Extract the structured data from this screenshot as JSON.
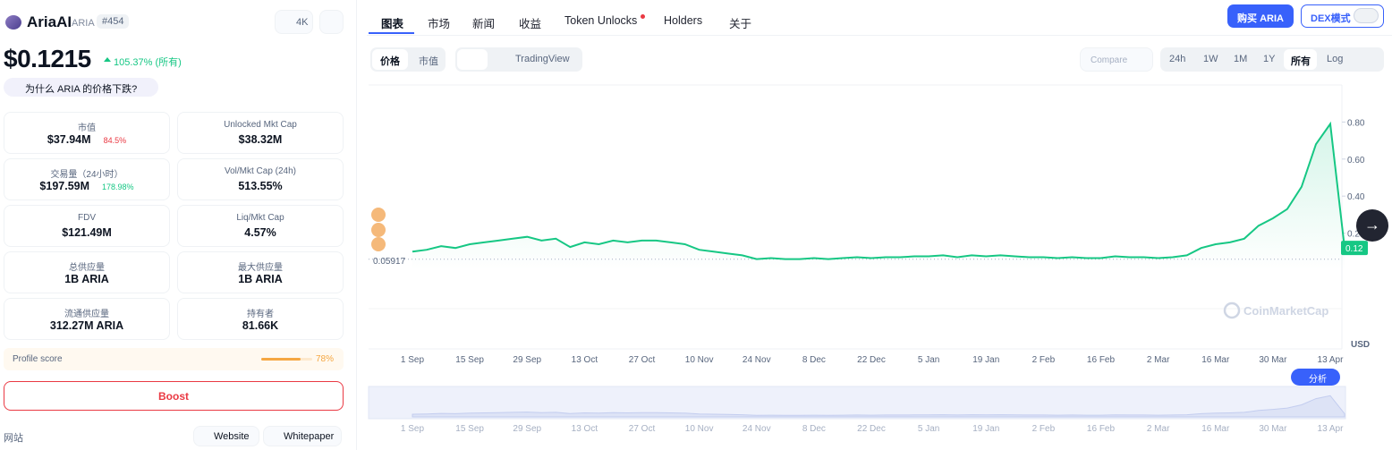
{
  "header": {
    "name": "AriaAI",
    "symbol": "ARIA",
    "rank": "#454",
    "watchlist": "4K"
  },
  "price": "$0.1215",
  "price_change": "105.37% (所有)",
  "why_prompt": "为什么 ARIA 的价格下跌?",
  "stats": [
    {
      "label": "市值",
      "value": "$37.94M",
      "change": "84.5%",
      "change_direction": "down"
    },
    {
      "label": "Unlocked Mkt Cap",
      "value": "$38.32M"
    },
    {
      "label": "交易量（24小时）",
      "value": "$197.59M",
      "change": "178.98%",
      "change_direction": "up"
    },
    {
      "label": "Vol/Mkt Cap (24h)",
      "value": "513.55%"
    },
    {
      "label": "FDV",
      "value": "$121.49M"
    },
    {
      "label": "Liq/Mkt Cap",
      "value": "4.57%"
    },
    {
      "label": "总供应量",
      "value": "1B ARIA"
    },
    {
      "label": "最大供应量",
      "value": "1B ARIA"
    },
    {
      "label": "流通供应量",
      "value": "312.27M ARIA"
    },
    {
      "label": "持有者",
      "value": "81.66K"
    }
  ],
  "profile_score": {
    "label": "Profile score",
    "value": 78,
    "value_label": "78%"
  },
  "boost": "Boost",
  "website_label": "网站",
  "links": [
    "Website",
    "Whitepaper"
  ],
  "tabs": [
    "图表",
    "市场",
    "新闻",
    "收益",
    "Token Unlocks",
    "Holders",
    "关于"
  ],
  "buy_button": "购买 ARIA",
  "dex_mode": "DEX模式",
  "chart_toggles": [
    "价格",
    "市值"
  ],
  "chart_style": "TradingView",
  "compare": "Compare",
  "ranges": [
    "24h",
    "1W",
    "1M",
    "1Y",
    "所有",
    "Log"
  ],
  "active_range": "所有",
  "analyze": "分析",
  "currency": "USD",
  "watermark": "CoinMarketCap",
  "chart_data": {
    "type": "line",
    "color": "#16c784",
    "categories": [
      "1 Sep",
      null,
      null,
      null,
      "15 Sep",
      null,
      null,
      null,
      "29 Sep",
      null,
      null,
      null,
      "13 Oct",
      null,
      null,
      null,
      "27 Oct",
      null,
      null,
      null,
      "10 Nov",
      null,
      null,
      null,
      "24 Nov",
      null,
      null,
      null,
      "8 Dec",
      null,
      null,
      null,
      "22 Dec",
      null,
      null,
      null,
      "5 Jan",
      null,
      null,
      null,
      "19 Jan",
      null,
      null,
      null,
      "2 Feb",
      null,
      null,
      null,
      "16 Feb",
      null,
      null,
      null,
      "2 Mar",
      null,
      null,
      null,
      "16 Mar",
      null,
      null,
      null,
      "30 Mar",
      null,
      null,
      null,
      "13 Apr",
      null
    ],
    "values": [
      0.1,
      0.11,
      0.13,
      0.12,
      0.14,
      0.15,
      0.16,
      0.17,
      0.18,
      0.16,
      0.17,
      0.125,
      0.15,
      0.14,
      0.16,
      0.15,
      0.16,
      0.16,
      0.15,
      0.14,
      0.11,
      0.1,
      0.09,
      0.08,
      0.06,
      0.065,
      0.06,
      0.06,
      0.065,
      0.06,
      0.065,
      0.07,
      0.065,
      0.07,
      0.07,
      0.075,
      0.075,
      0.08,
      0.07,
      0.08,
      0.075,
      0.08,
      0.075,
      0.07,
      0.07,
      0.065,
      0.07,
      0.065,
      0.065,
      0.075,
      0.07,
      0.07,
      0.065,
      0.07,
      0.08,
      0.12,
      0.14,
      0.15,
      0.17,
      0.24,
      0.28,
      0.33,
      0.45,
      0.68,
      0.79,
      0.12
    ],
    "ylim": [
      0,
      1
    ],
    "yticks": [
      {
        "value": 0.2,
        "label": "0.20"
      },
      {
        "value": 0.4,
        "label": "0.40"
      },
      {
        "value": 0.6,
        "label": "0.60"
      },
      {
        "value": 0.8,
        "label": "0.80"
      }
    ],
    "reference_line": {
      "value": 0.05917,
      "label": "0.05917"
    },
    "current_price_label": "0.12"
  }
}
